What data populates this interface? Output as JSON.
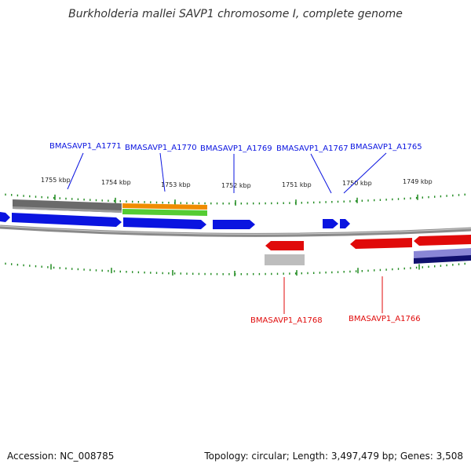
{
  "title": "Burkholderia mallei SAVP1 chromosome I, complete genome",
  "footer": {
    "accession": "Accession: NC_008785",
    "summary": "Topology: circular; Length: 3,497,479 bp; Genes: 3,508"
  },
  "colors": {
    "forward_gene": "#0a14e0",
    "reverse_gene": "#e00a0a",
    "backbone": "#8a8a8a",
    "tick": "#1f8a1f",
    "cds_gray": "#6a6a6a",
    "cds_orange": "#f08c00",
    "cds_green": "#55cc33",
    "cds_light_gray": "#bdbdbd",
    "cds_navy": "#10106e",
    "cds_lavender": "#8a86d6"
  },
  "ticks": [
    "1755 kbp",
    "1754 kbp",
    "1753 kbp",
    "1752 kbp",
    "1751 kbp",
    "1750 kbp",
    "1749 kbp"
  ],
  "forward_labels": [
    "BMASAVP1_A1771",
    "BMASAVP1_A1770",
    "BMASAVP1_A1769",
    "BMASAVP1_A1767",
    "BMASAVP1_A1765"
  ],
  "reverse_labels": [
    "BMASAVP1_A1768",
    "BMASAVP1_A1766"
  ]
}
